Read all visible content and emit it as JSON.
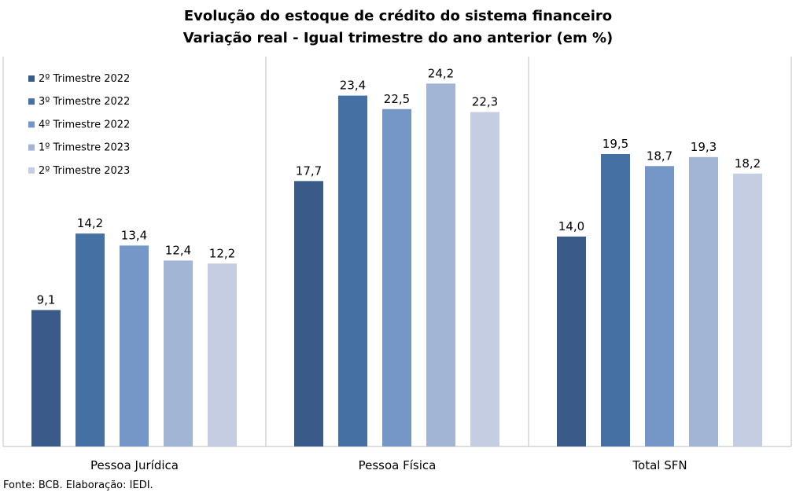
{
  "chart_data": {
    "type": "bar",
    "title": "Evolução do estoque de crédito do sistema financeiro",
    "subtitle": "Variação real - Igual trimestre do ano anterior (em %)",
    "categories": [
      "Pessoa Jurídica",
      "Pessoa Física",
      "Total SFN"
    ],
    "series": [
      {
        "name": "2º Trimestre 2022",
        "color": "#3a5b8a",
        "values": [
          9.1,
          17.7,
          14.0
        ],
        "labels": [
          "9,1",
          "17,7",
          "14,0"
        ]
      },
      {
        "name": "3º Trimestre 2022",
        "color": "#4470a3",
        "values": [
          14.2,
          23.4,
          19.5
        ],
        "labels": [
          "14,2",
          "23,4",
          "19,5"
        ]
      },
      {
        "name": "4º Trimestre 2022",
        "color": "#7497c7",
        "values": [
          13.4,
          22.5,
          18.7
        ],
        "labels": [
          "13,4",
          "22,5",
          "18,7"
        ]
      },
      {
        "name": "1º Trimestre 2023",
        "color": "#a3b5d5",
        "values": [
          12.4,
          24.2,
          19.3
        ],
        "labels": [
          "12,4",
          "24,2",
          "19,3"
        ]
      },
      {
        "name": "2º Trimestre 2023",
        "color": "#c4cde2",
        "values": [
          12.2,
          22.3,
          18.2
        ],
        "labels": [
          "12,2",
          "22,3",
          "18,2"
        ]
      }
    ],
    "ylim": [
      0,
      26
    ],
    "grid": false,
    "legend": "top-left"
  },
  "source": "Fonte: BCB. Elaboração: IEDI."
}
